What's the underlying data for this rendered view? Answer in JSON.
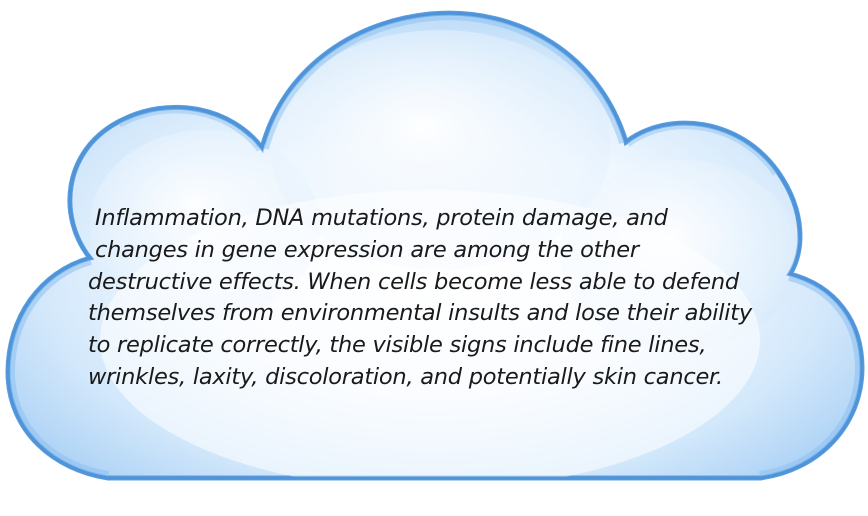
{
  "cloud": {
    "lines": [
      "Inflammation, DNA mutations, protein damage, and",
      "changes in gene expression are among the other",
      "destructive effects. When cells become less able to defend",
      "themselves from environmental insults and lose their ability",
      "to replicate correctly, the visible signs include fine lines,",
      "wrinkles, laxity, discoloration, and potentially skin cancer."
    ],
    "colors": {
      "outline": "#5b9fe0",
      "rim": "#8cc0f0",
      "fill_center": "#ffffff",
      "fill_edge": "#a9d0f5",
      "text": "#1a1a1a"
    }
  }
}
